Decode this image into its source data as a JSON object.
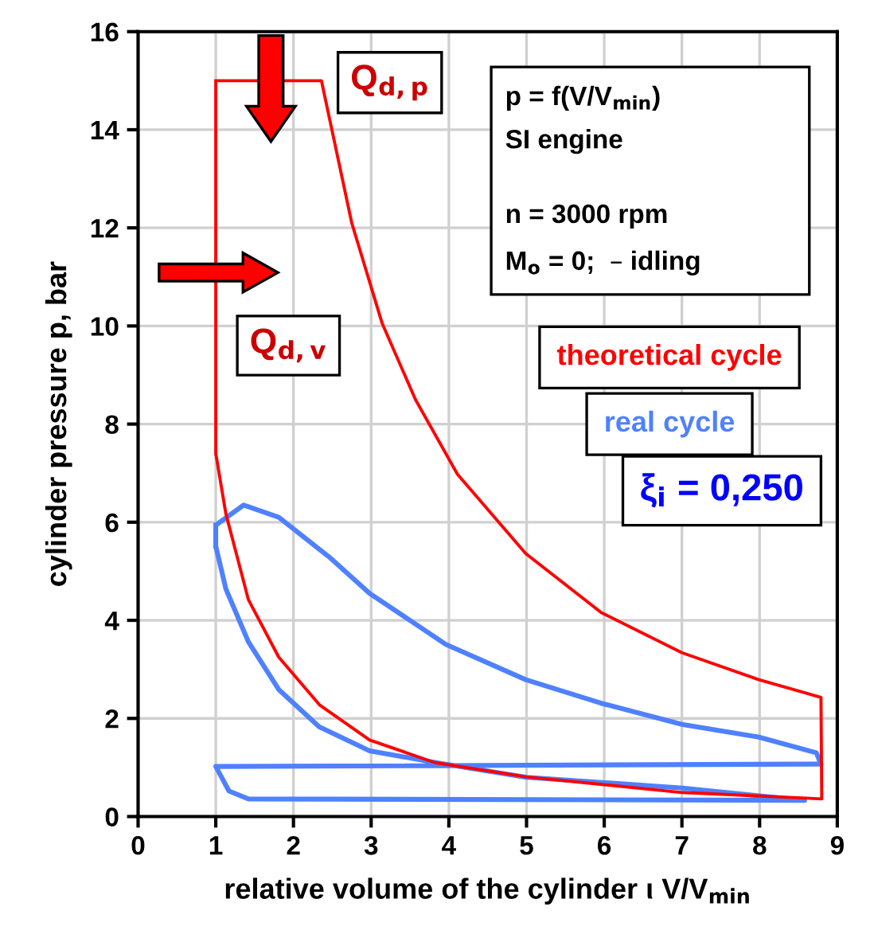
{
  "chart_data": {
    "type": "line",
    "xlabel": "relative volume of the cylinder ι V/V$_{min}$",
    "ylabel": "cylinder pressure p, bar",
    "xlim": [
      0,
      9
    ],
    "xticks": [
      0,
      1,
      2,
      3,
      4,
      5,
      6,
      7,
      8,
      9
    ],
    "ylim": [
      0,
      16
    ],
    "yticks": [
      0,
      2,
      4,
      6,
      8,
      10,
      12,
      14,
      16
    ],
    "grid": true,
    "marker": "none",
    "line_style": "solid",
    "series": [
      {
        "name": "theoretical cycle",
        "color": "#ff0000",
        "x": [
          1.0,
          1.0,
          2.36,
          2.75,
          3.14,
          3.57,
          4.11,
          4.99,
          5.96,
          7.0,
          7.99,
          8.79,
          8.8,
          7.0,
          4.99,
          3.82,
          2.98,
          2.34,
          1.81,
          1.42,
          1.13,
          1.0,
          1.0
        ],
        "values": [
          7.4,
          15.0,
          15.0,
          12.1,
          10.06,
          8.5,
          6.98,
          5.36,
          4.16,
          3.34,
          2.79,
          2.43,
          0.36,
          0.49,
          0.81,
          1.1,
          1.56,
          2.27,
          3.25,
          4.42,
          6.17,
          7.4,
          15.0
        ]
      },
      {
        "name": "real cycle",
        "color": "#4f81ff",
        "x": [
          1.0,
          1.0,
          1.36,
          1.81,
          2.46,
          2.98,
          3.96,
          4.99,
          5.96,
          7.0,
          7.99,
          8.73,
          8.79,
          1.0,
          1.17,
          1.42,
          8.58,
          7.01,
          5.0,
          3.83,
          2.98,
          2.33,
          1.81,
          1.42,
          1.13,
          1.0,
          1.0
        ],
        "values": [
          5.51,
          5.94,
          6.35,
          6.1,
          5.29,
          4.55,
          3.51,
          2.79,
          2.31,
          1.88,
          1.62,
          1.3,
          1.07,
          1.02,
          0.52,
          0.36,
          0.33,
          0.58,
          0.8,
          1.1,
          1.34,
          1.83,
          2.59,
          3.56,
          4.64,
          5.51,
          5.94
        ]
      }
    ],
    "annotations": [
      "p = f(V/V$_{min}$)",
      "SI engine",
      "n = 3000 rpm",
      "M$_{o}$ = 0;  – idling",
      "Q$_{d,p}$",
      "Q$_{d,v}$",
      "ξ$_{i}$ = 0,250"
    ]
  }
}
